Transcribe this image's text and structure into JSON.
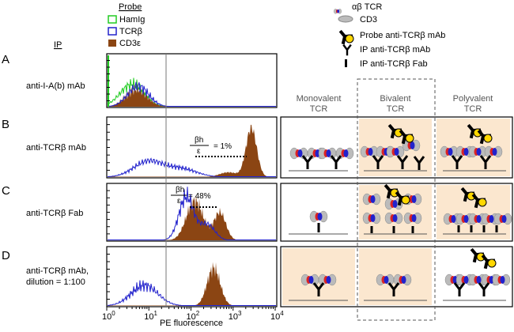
{
  "probe_legend": {
    "title": "Probe",
    "items": [
      "HamIg",
      "TCRβ",
      "CD3ε"
    ]
  },
  "ip_label": "IP",
  "rows": [
    {
      "letter": "A",
      "label": "anti-I-A(b) mAb"
    },
    {
      "letter": "B",
      "label": "anti-TCRβ mAb"
    },
    {
      "letter": "C",
      "label": "anti-TCRβ Fab"
    },
    {
      "letter": "D",
      "label": [
        "anti-TCRβ mAb,",
        "dilution = 1:100"
      ]
    }
  ],
  "annotations": [
    {
      "numerator": "βh",
      "denominator": "ε",
      "text": "= 1%"
    },
    {
      "numerator": "βh",
      "denominator": "ε",
      "text": "= 48%"
    }
  ],
  "x_axis": {
    "label": "PE fluorescence",
    "ticks": [
      {
        "base": "10",
        "exp": "0"
      },
      {
        "base": "10",
        "exp": "1"
      },
      {
        "base": "10",
        "exp": "2"
      },
      {
        "base": "10",
        "exp": "3"
      },
      {
        "base": "10",
        "exp": "4"
      }
    ]
  },
  "model_legend": [
    "αβ  TCR",
    "CD3",
    "Probe anti-TCRβ mAb",
    "IP anti-TCRβ mAb",
    "IP anti-TCRβ Fab"
  ],
  "columns": [
    [
      "Monovalent",
      "TCR"
    ],
    [
      "Bivalent",
      "TCR"
    ],
    [
      "Polyvalent",
      "TCR"
    ]
  ]
}
